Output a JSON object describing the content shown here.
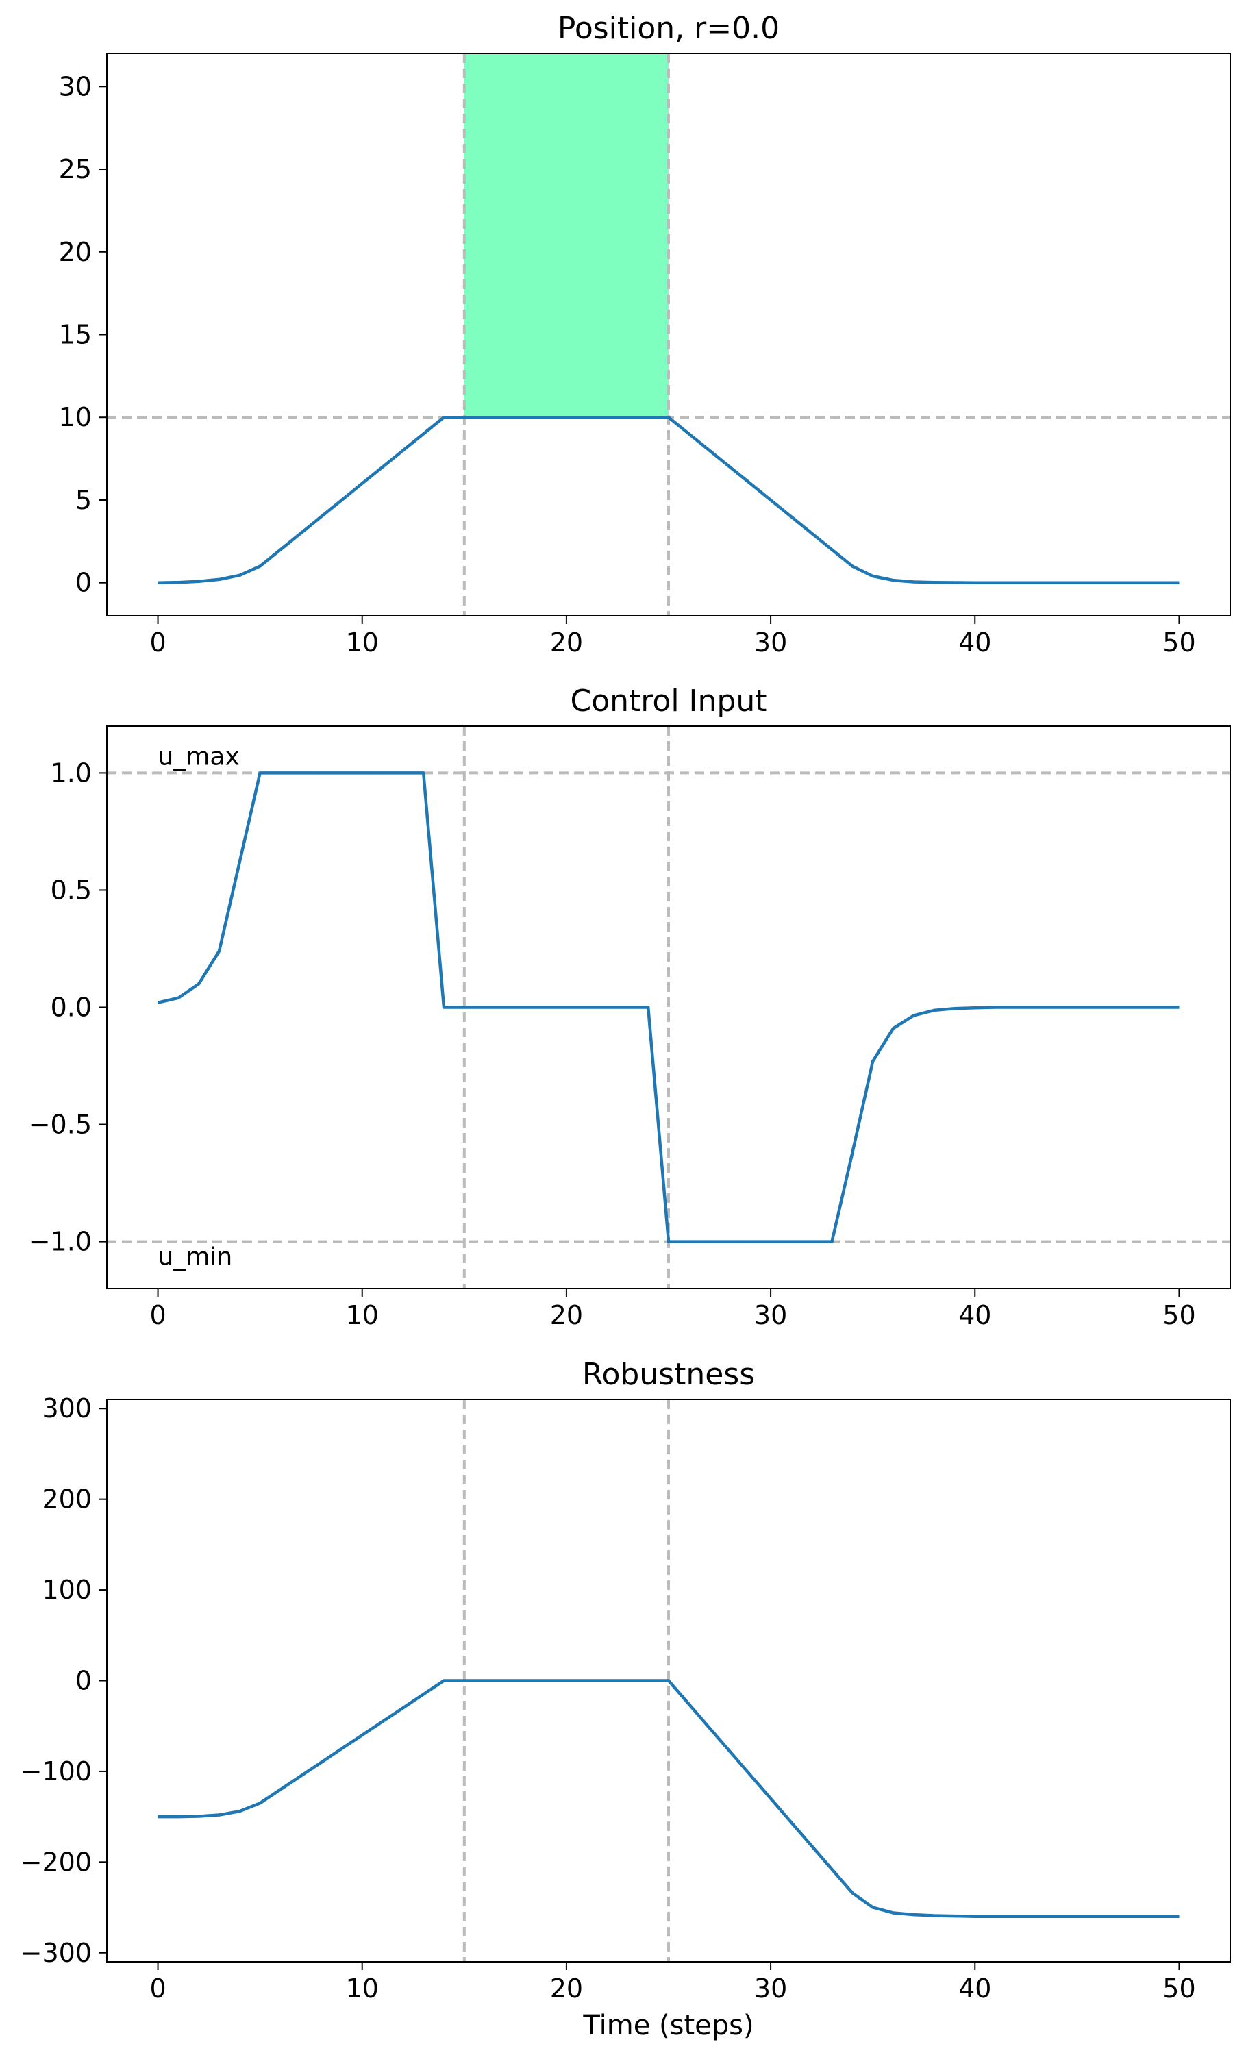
{
  "chart_data": [
    {
      "type": "line",
      "title": "Position, r=0.0",
      "xlabel": "",
      "ylabel": "",
      "xlim": [
        -2.5,
        52.5
      ],
      "ylim": [
        -2,
        32
      ],
      "xticks": [
        0,
        10,
        20,
        30,
        40,
        50
      ],
      "yticks": [
        0,
        5,
        10,
        15,
        20,
        25,
        30
      ],
      "xtick_labels": [
        "0",
        "10",
        "20",
        "30",
        "40",
        "50"
      ],
      "ytick_labels": [
        "0",
        "5",
        "10",
        "15",
        "20",
        "25",
        "30"
      ],
      "grid": false,
      "hlines": [
        10
      ],
      "vlines": [
        15,
        25
      ],
      "shaded_region": {
        "x": [
          15,
          25
        ],
        "y": [
          10,
          32
        ],
        "color": "#7fffbf"
      },
      "annotations": [],
      "series": [
        {
          "color": "#1f77b4",
          "x": [
            0,
            1,
            2,
            3,
            4,
            5,
            6,
            7,
            8,
            9,
            10,
            11,
            12,
            13,
            14,
            15,
            16,
            17,
            18,
            19,
            20,
            21,
            22,
            23,
            24,
            25,
            26,
            27,
            28,
            29,
            30,
            31,
            32,
            33,
            34,
            35,
            36,
            37,
            38,
            39,
            40,
            41,
            42,
            43,
            44,
            45,
            46,
            47,
            48,
            49,
            50
          ],
          "y": [
            0,
            0.02,
            0.08,
            0.2,
            0.45,
            1.0,
            2.0,
            3.0,
            4.0,
            5.0,
            6.0,
            7.0,
            8.0,
            9.0,
            10.0,
            10.0,
            10.0,
            10.0,
            10.0,
            10.0,
            10.0,
            10.0,
            10.0,
            10.0,
            10.0,
            10.0,
            9.0,
            8.0,
            7.0,
            6.0,
            5.0,
            4.0,
            3.0,
            2.0,
            1.0,
            0.4,
            0.15,
            0.05,
            0.02,
            0.01,
            0,
            0,
            0,
            0,
            0,
            0,
            0,
            0,
            0,
            0,
            0
          ]
        }
      ]
    },
    {
      "type": "line",
      "title": "Control Input",
      "xlabel": "",
      "ylabel": "",
      "xlim": [
        -2.5,
        52.5
      ],
      "ylim": [
        -1.2,
        1.2
      ],
      "xticks": [
        0,
        10,
        20,
        30,
        40,
        50
      ],
      "yticks": [
        -1.0,
        -0.5,
        0.0,
        0.5,
        1.0
      ],
      "xtick_labels": [
        "0",
        "10",
        "20",
        "30",
        "40",
        "50"
      ],
      "ytick_labels": [
        "−1.0",
        "−0.5",
        "0.0",
        "0.5",
        "1.0"
      ],
      "grid": false,
      "hlines": [
        1.0,
        -1.0
      ],
      "vlines": [
        15,
        25
      ],
      "annotations": [
        {
          "text": "u_max",
          "x": 0,
          "y": 1.0
        },
        {
          "text": "u_min",
          "x": 0,
          "y": -1.0
        }
      ],
      "series": [
        {
          "color": "#1f77b4",
          "x": [
            0,
            1,
            2,
            3,
            4,
            5,
            6,
            7,
            8,
            9,
            10,
            11,
            12,
            13,
            14,
            15,
            16,
            17,
            18,
            19,
            20,
            21,
            22,
            23,
            24,
            25,
            26,
            27,
            28,
            29,
            30,
            31,
            32,
            33,
            34,
            35,
            36,
            37,
            38,
            39,
            40,
            41,
            42,
            43,
            44,
            45,
            46,
            47,
            48,
            49,
            50
          ],
          "y": [
            0.02,
            0.04,
            0.1,
            0.24,
            0.62,
            1.0,
            1.0,
            1.0,
            1.0,
            1.0,
            1.0,
            1.0,
            1.0,
            1.0,
            0,
            0,
            0,
            0,
            0,
            0,
            0,
            0,
            0,
            0,
            0,
            -1.0,
            -1.0,
            -1.0,
            -1.0,
            -1.0,
            -1.0,
            -1.0,
            -1.0,
            -1.0,
            -0.62,
            -0.23,
            -0.09,
            -0.035,
            -0.013,
            -0.005,
            -0.002,
            0,
            0,
            0,
            0,
            0,
            0,
            0,
            0,
            0,
            0
          ]
        }
      ]
    },
    {
      "type": "line",
      "title": "Robustness",
      "xlabel": "Time (steps)",
      "ylabel": "",
      "xlim": [
        -2.5,
        52.5
      ],
      "ylim": [
        -310,
        310
      ],
      "xticks": [
        0,
        10,
        20,
        30,
        40,
        50
      ],
      "yticks": [
        -300,
        -200,
        -100,
        0,
        100,
        200,
        300
      ],
      "xtick_labels": [
        "0",
        "10",
        "20",
        "30",
        "40",
        "50"
      ],
      "ytick_labels": [
        "−300",
        "−200",
        "−100",
        "0",
        "100",
        "200",
        "300"
      ],
      "grid": false,
      "hlines": [],
      "vlines": [
        15,
        25
      ],
      "annotations": [],
      "series": [
        {
          "color": "#1f77b4",
          "x": [
            0,
            1,
            2,
            3,
            4,
            5,
            6,
            7,
            8,
            9,
            10,
            11,
            12,
            13,
            14,
            15,
            16,
            17,
            18,
            19,
            20,
            21,
            22,
            23,
            24,
            25,
            26,
            27,
            28,
            29,
            30,
            31,
            32,
            33,
            34,
            35,
            36,
            37,
            38,
            39,
            40,
            41,
            42,
            43,
            44,
            45,
            46,
            47,
            48,
            49,
            50
          ],
          "y": [
            -150,
            -150,
            -149.5,
            -148,
            -144,
            -135,
            -120,
            -105,
            -90,
            -75,
            -60,
            -45,
            -30,
            -15,
            0,
            0,
            0,
            0,
            0,
            0,
            0,
            0,
            0,
            0,
            0,
            0,
            -26,
            -52,
            -78,
            -104,
            -130,
            -156,
            -182,
            -208,
            -234,
            -250,
            -256,
            -258,
            -259,
            -259.5,
            -260,
            -260,
            -260,
            -260,
            -260,
            -260,
            -260,
            -260,
            -260,
            -260,
            -260
          ]
        }
      ]
    }
  ]
}
